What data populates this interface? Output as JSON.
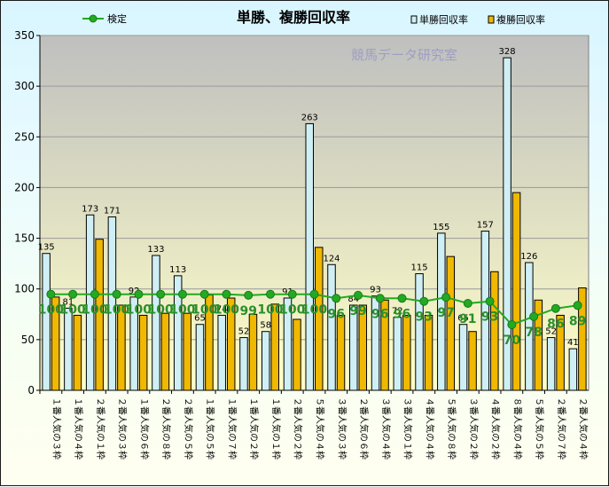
{
  "chart_data": {
    "type": "bar",
    "title": "単勝、複勝回収率",
    "watermark": "競馬データ研究室",
    "categories": [
      "１番人気の３枠",
      "１番人気の４枠",
      "２番人気の１枠",
      "２番人気の３枠",
      "１番人気の６枠",
      "２番人気の８枠",
      "２番人気の５枠",
      "１番人気の５枠",
      "１番人気の７枠",
      "１番人気の２枠",
      "１番人気の１枠",
      "２番人気の２枠",
      "５番人気の４枠",
      "３番人気の３枠",
      "２番人気の６枠",
      "３番人気の４枠",
      "３番人気の１枠",
      "４番人気の４枠",
      "５番人気の８枠",
      "３番人気の２枠",
      "４番人気の２枠",
      "８番人気の４枠",
      "５番人気の５枠",
      "２番人気の７枠",
      "２番人気の４枠"
    ],
    "series": [
      {
        "name": "単勝回収率",
        "type": "bar",
        "color": "#cfeff5",
        "values": [
          135,
          81,
          173,
          171,
          92,
          133,
          113,
          65,
          74,
          52,
          58,
          91,
          263,
          124,
          84,
          93,
          72,
          115,
          155,
          65,
          157,
          328,
          126,
          52,
          41
        ]
      },
      {
        "name": "複勝回収率",
        "type": "bar",
        "color": "#f0b800",
        "values": [
          92,
          74,
          149,
          84,
          74,
          76,
          76,
          94,
          91,
          75,
          85,
          70,
          141,
          74,
          84,
          89,
          74,
          74,
          132,
          58,
          117,
          195,
          89,
          74,
          101
        ]
      },
      {
        "name": "検定",
        "type": "line",
        "color": "#22aa22",
        "values": [
          100,
          100,
          100,
          100,
          100,
          100,
          100,
          100,
          100,
          99,
          100,
          100,
          100,
          96,
          99,
          96,
          96,
          93,
          97,
          91,
          93,
          70,
          78,
          86,
          89
        ]
      }
    ],
    "ylim": [
      0,
      350
    ],
    "yticks": [
      0,
      50,
      100,
      150,
      200,
      250,
      300,
      350
    ],
    "grid": true,
    "legend": "top"
  },
  "colors": {
    "plot_top": "#bfbfbf",
    "plot_bottom": "#ffffc8",
    "bar_outline": "#000000"
  }
}
